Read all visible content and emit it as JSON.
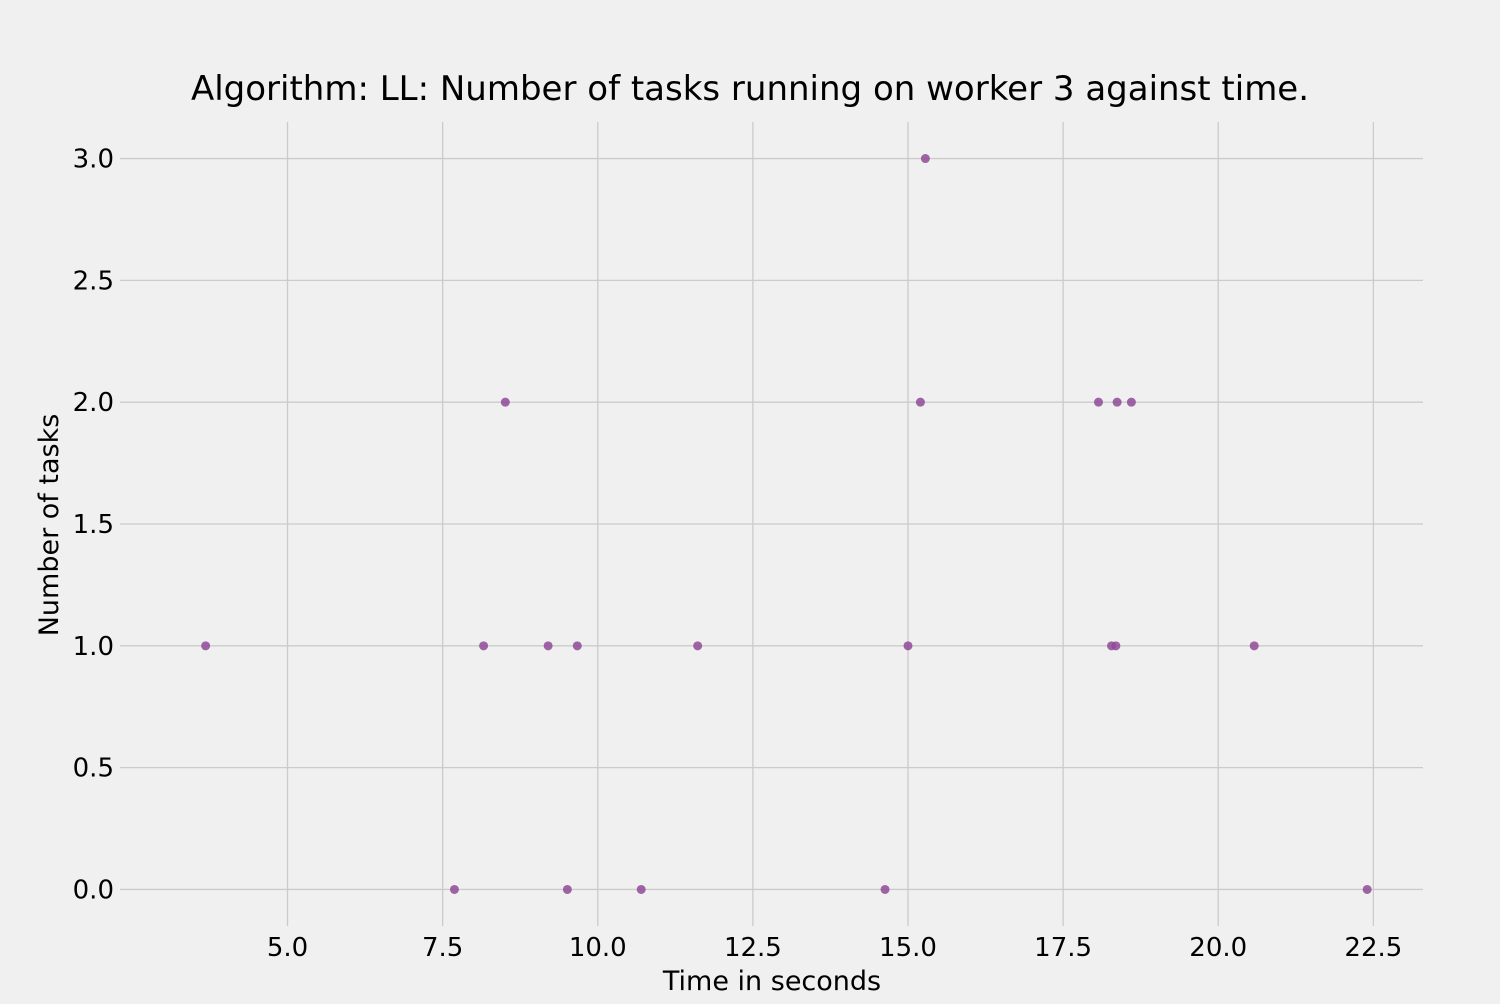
{
  "chart_data": {
    "type": "scatter",
    "title": "Algorithm: LL: Number of tasks running on worker 3 against time.",
    "xlabel": "Time in seconds",
    "ylabel": "Number of tasks",
    "xlim": [
      2.3,
      23.3
    ],
    "ylim": [
      -0.15,
      3.15
    ],
    "xticks": [
      5.0,
      7.5,
      10.0,
      12.5,
      15.0,
      17.5,
      20.0,
      22.5
    ],
    "yticks": [
      0.0,
      0.5,
      1.0,
      1.5,
      2.0,
      2.5,
      3.0
    ],
    "xtick_labels": [
      "5.0",
      "7.5",
      "10.0",
      "12.5",
      "15.0",
      "17.5",
      "20.0",
      "22.5"
    ],
    "ytick_labels": [
      "0.0",
      "0.5",
      "1.0",
      "1.5",
      "2.0",
      "2.5",
      "3.0"
    ],
    "grid": true,
    "background_color": "#f0f0f0",
    "grid_color": "#cbcbcb",
    "marker_color": "#8e4a96",
    "points": [
      {
        "x": 3.68,
        "y": 1
      },
      {
        "x": 7.69,
        "y": 0
      },
      {
        "x": 8.16,
        "y": 1
      },
      {
        "x": 8.51,
        "y": 2
      },
      {
        "x": 9.2,
        "y": 1
      },
      {
        "x": 9.51,
        "y": 0
      },
      {
        "x": 9.67,
        "y": 1
      },
      {
        "x": 10.7,
        "y": 0
      },
      {
        "x": 11.61,
        "y": 1
      },
      {
        "x": 14.63,
        "y": 0
      },
      {
        "x": 15.0,
        "y": 1
      },
      {
        "x": 15.2,
        "y": 2
      },
      {
        "x": 15.28,
        "y": 3
      },
      {
        "x": 18.07,
        "y": 2
      },
      {
        "x": 18.28,
        "y": 1
      },
      {
        "x": 18.35,
        "y": 1
      },
      {
        "x": 18.37,
        "y": 2
      },
      {
        "x": 18.6,
        "y": 2
      },
      {
        "x": 20.58,
        "y": 1
      },
      {
        "x": 22.4,
        "y": 0
      }
    ]
  }
}
